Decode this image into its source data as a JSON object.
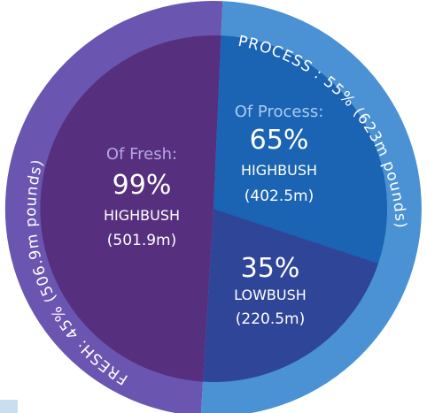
{
  "chart_data": {
    "type": "pie",
    "outer_ring": {
      "slices": [
        {
          "label": "PROCESS",
          "text": "PROCESS : 55% (623m pounds)",
          "percent": 55,
          "value_m_pounds": 623,
          "color": "#4a92d4"
        },
        {
          "label": "FRESH",
          "text": "FRESH: 45% (506.9m pounds)",
          "percent": 45,
          "value_m_pounds": 506.9,
          "color": "#6a56b0"
        }
      ]
    },
    "inner_pie": {
      "slices": [
        {
          "group": "Fresh",
          "prefix": "Of Fresh:",
          "percent_label": "99%",
          "name": "HIGHBUSH",
          "value_label": "(501.9m)",
          "value": 501.9,
          "color": "#56307f"
        },
        {
          "group": "Process",
          "prefix": "Of Process:",
          "percent_label": "65%",
          "name": "HIGHBUSH",
          "value_label": "(402.5m)",
          "value": 402.5,
          "color": "#1b63b3"
        },
        {
          "group": "Process",
          "prefix": "",
          "percent_label": "35%",
          "name": "LOWBUSH",
          "value_label": "(220.5m)",
          "value": 220.5,
          "color": "#2f4597"
        }
      ]
    },
    "colors": {
      "prefix_text": "#b7a6df",
      "prefix_text_process": "#a8cdf2",
      "label_text": "#ffffff"
    }
  }
}
